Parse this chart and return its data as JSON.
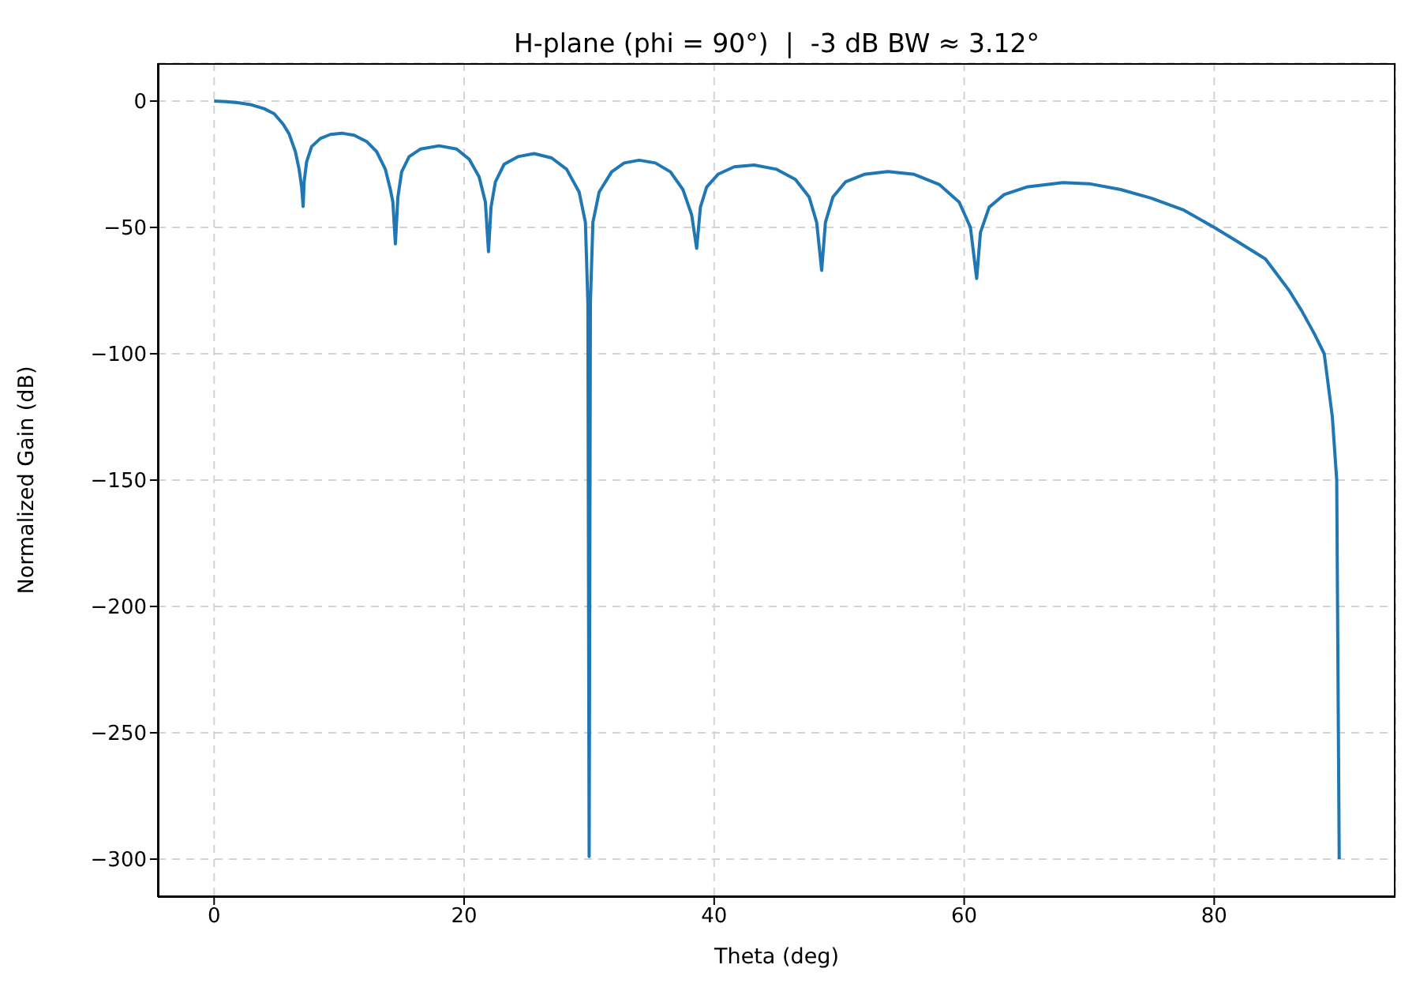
{
  "chart_data": {
    "type": "line",
    "title": "H-plane (phi = 90°)  |  -3 dB BW ≈ 3.12°",
    "xlabel": "Theta (deg)",
    "ylabel": "Normalized Gain (dB)",
    "x": [
      0,
      1,
      2,
      3,
      4,
      4.8,
      5.5,
      6.0,
      6.5,
      6.8,
      7.0,
      7.12,
      7.2,
      7.4,
      7.8,
      8.5,
      9.3,
      10.2,
      11.2,
      12.2,
      13.0,
      13.7,
      14.1,
      14.3,
      14.5,
      14.7,
      15.0,
      15.6,
      16.5,
      18.0,
      19.4,
      20.4,
      21.2,
      21.7,
      21.95,
      22.15,
      22.5,
      23.2,
      24.3,
      25.6,
      27,
      28.2,
      29.2,
      29.7,
      29.9,
      30,
      30.1,
      30.3,
      30.8,
      31.8,
      32.8,
      34.0,
      35.3,
      36.5,
      37.5,
      38.2,
      38.6,
      38.9,
      39.4,
      40.3,
      41.6,
      43.2,
      45,
      46.5,
      47.6,
      48.2,
      48.6,
      48.9,
      49.5,
      50.5,
      52,
      53.9,
      56,
      58,
      59.6,
      60.5,
      61.0,
      61.3,
      62,
      63.2,
      65,
      67.9,
      70,
      72.5,
      75,
      77.5,
      80,
      82,
      84.1,
      86,
      87,
      88,
      88.8,
      89.45,
      89.8,
      90
    ],
    "series": [
      {
        "color": "#1f77b4",
        "values": [
          0,
          -0.2,
          -0.7,
          -1.5,
          -3,
          -5,
          -9,
          -13,
          -20,
          -27,
          -34,
          -41.7,
          -32,
          -24,
          -18,
          -14.8,
          -13.2,
          -12.7,
          -13.5,
          -16,
          -20,
          -27,
          -35,
          -40,
          -56.5,
          -38,
          -28,
          -22,
          -19,
          -17.7,
          -19,
          -23,
          -30,
          -40,
          -59.6,
          -42,
          -32,
          -25,
          -22,
          -20.8,
          -22.5,
          -27,
          -36,
          -48,
          -80,
          -299,
          -80,
          -48,
          -36,
          -28,
          -24.5,
          -23.4,
          -24.5,
          -28,
          -35,
          -45,
          -58.3,
          -42,
          -34,
          -29,
          -26,
          -25.3,
          -27,
          -31,
          -38,
          -48,
          -67,
          -48,
          -38,
          -32,
          -29,
          -27.9,
          -29,
          -33,
          -40,
          -50,
          -70.2,
          -52,
          -42,
          -37,
          -34,
          -32.3,
          -32.7,
          -35,
          -38.5,
          -43,
          -50,
          -56,
          -62.5,
          -75,
          -83,
          -92,
          -100,
          -125,
          -150,
          -300
        ]
      }
    ],
    "xlim": [
      -4.5,
      94.5
    ],
    "ylim": [
      -315,
      15
    ],
    "xticks": [
      0,
      20,
      40,
      60,
      80
    ],
    "yticks": [
      0,
      -50,
      -100,
      -150,
      -200,
      -250,
      -300
    ],
    "grid": true
  }
}
